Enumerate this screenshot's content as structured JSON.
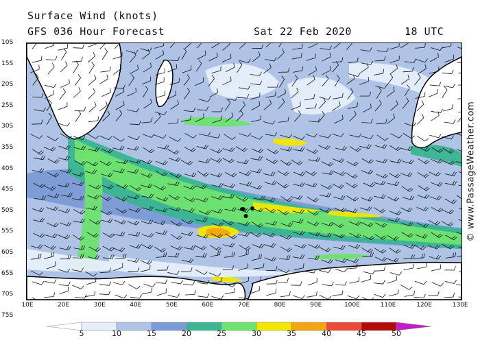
{
  "header": {
    "title": "Surface Wind (knots)",
    "forecast": "GFS 036 Hour Forecast",
    "date": "Sat 22 Feb 2020",
    "time": "18 UTC"
  },
  "credit": "© www.PassageWeather.com",
  "latitudes": [
    "10S",
    "15S",
    "20S",
    "25S",
    "30S",
    "35S",
    "40S",
    "45S",
    "50S",
    "55S",
    "60S",
    "65S",
    "70S",
    "75S"
  ],
  "longitudes": [
    "10E",
    "20E",
    "30E",
    "40E",
    "50E",
    "60E",
    "70E",
    "80E",
    "90E",
    "100E",
    "110E",
    "120E",
    "130E"
  ],
  "colorbar": {
    "labels": [
      "5",
      "10",
      "15",
      "20",
      "25",
      "30",
      "35",
      "40",
      "45",
      "50"
    ],
    "colors": [
      "#e6eefa",
      "#aec3e6",
      "#7b9bd6",
      "#3bb592",
      "#6fe36f",
      "#f2e700",
      "#f3a511",
      "#ee4a3a",
      "#b30a0a",
      "#c21dc8"
    ],
    "under_color": "#ffffff",
    "over_color": "#c21dc8"
  },
  "map": {
    "land_color": "#ffffff",
    "ocean_base_color": "#aec3e6"
  }
}
